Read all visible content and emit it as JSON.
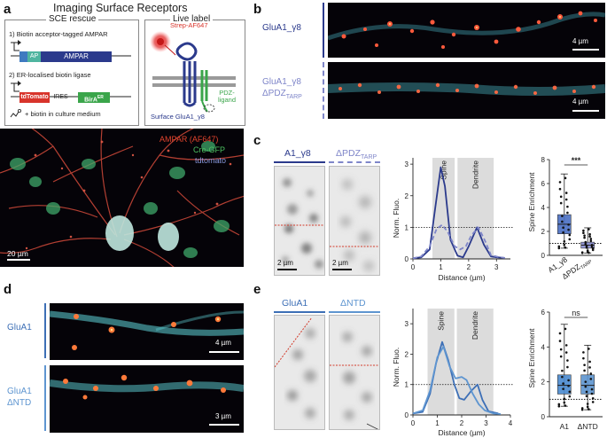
{
  "figure": {
    "panels": {
      "a": {
        "label": "a",
        "title": "Imaging Surface Receptors",
        "sce_box_title": "SCE rescue",
        "step1": "1) Biotin acceptor-tagged AMPAR",
        "ap": "AP",
        "ampar": "AMPAR",
        "step2": "2) ER-localised biotin ligase",
        "tdtomato_seg": "tdTomato",
        "ires_seg": "-IRES-",
        "bira_seg": "BirA",
        "bira_sup": "ER",
        "biotin_note": "+ biotin in culture medium",
        "live_box_title": "Live label",
        "strep": "Strep-AF647",
        "pdz_ligand": "PDZ-\nligand",
        "pdz_line1": "PDZ-",
        "pdz_line2": "ligand",
        "surface": "Surface GluA1_γ8",
        "legend_ampar": "AMPAR (AF647)",
        "legend_cre": "Cre-GFP",
        "legend_td": "tdtomato",
        "scale": "20 µm"
      },
      "b": {
        "label": "b",
        "row1": "GluA1_γ8",
        "row2_line1": "GluA1_γ8",
        "row2_line2_main": "ΔPDZ",
        "row2_line2_sub": "TARP",
        "scale1": "4 µm",
        "scale2": "4 µm"
      },
      "c": {
        "label": "c",
        "col1": "A1_γ8",
        "col2_main": "ΔPDZ",
        "col2_sub": "TARP",
        "scale1": "2 µm",
        "scale2": "2 µm",
        "ylabel": "Norm. Fluo.",
        "xlabel": "Distance (µm)",
        "spine": "Spine",
        "dendrite": "Dendrite",
        "box_ylabel": "Spine Enrichment",
        "sig": "***",
        "cat1": "A1_γ8",
        "cat2_main": "ΔPDZ",
        "cat2_sub": "TARP"
      },
      "d": {
        "label": "d",
        "row1": "GluA1",
        "row2_line1": "GluA1",
        "row2_line2": "ΔNTD",
        "scale1": "4 µm",
        "scale2": "3 µm"
      },
      "e": {
        "label": "e",
        "col1": "GluA1",
        "col2": "ΔNTD",
        "ylabel": "Norm. Fluo.",
        "xlabel": "Distance (µm)",
        "spine": "Spine",
        "dendrite": "Dendrite",
        "box_ylabel": "Spine Enrichment",
        "sig": "ns",
        "cat1": "A1",
        "cat2": "ΔNTD"
      }
    },
    "colors": {
      "navy": "#2b3a8c",
      "lav": "#7f86c9",
      "blue": "#3d6fb6",
      "ltblue": "#5e95d0",
      "red": "#d8342b",
      "green": "#3aa54a"
    }
  },
  "chart_data": [
    {
      "id": "c-line",
      "type": "line",
      "xlabel": "Distance (µm)",
      "ylabel": "Norm. Fluo.",
      "xlim": [
        0,
        3.5
      ],
      "ylim": [
        0,
        3.2
      ],
      "xticks": [
        0,
        1,
        2,
        3
      ],
      "yticks": [
        0,
        1,
        2,
        3
      ],
      "reference_line": 1,
      "regions": [
        {
          "name": "Spine",
          "x": [
            0.7,
            1.5
          ]
        },
        {
          "name": "Dendrite",
          "x": [
            1.6,
            2.9
          ]
        }
      ],
      "series": [
        {
          "values": [
            [
              0,
              0.02
            ],
            [
              0.3,
              0.05
            ],
            [
              0.6,
              0.3
            ],
            [
              0.8,
              1.6
            ],
            [
              1.0,
              2.9
            ],
            [
              1.15,
              2.3
            ],
            [
              1.35,
              0.6
            ],
            [
              1.6,
              0.1
            ],
            [
              1.8,
              0.05
            ],
            [
              2.0,
              0.4
            ],
            [
              2.3,
              1.0
            ],
            [
              2.55,
              0.45
            ],
            [
              2.8,
              0.08
            ],
            [
              3.0,
              0.05
            ],
            [
              3.3,
              0.03
            ]
          ]
        },
        {
          "values": [
            [
              0,
              0.02
            ],
            [
              0.3,
              0.08
            ],
            [
              0.6,
              0.4
            ],
            [
              0.85,
              0.95
            ],
            [
              1.05,
              1.08
            ],
            [
              1.25,
              0.85
            ],
            [
              1.5,
              0.4
            ],
            [
              1.7,
              0.3
            ],
            [
              1.9,
              0.4
            ],
            [
              2.1,
              0.75
            ],
            [
              2.35,
              1.0
            ],
            [
              2.6,
              0.55
            ],
            [
              2.8,
              0.12
            ],
            [
              3.1,
              0.05
            ],
            [
              3.3,
              0.03
            ]
          ]
        }
      ]
    },
    {
      "id": "c-box",
      "type": "box",
      "ylabel": "Spine Enrichment",
      "ylim": [
        0,
        8
      ],
      "yticks": [
        0,
        2,
        4,
        6,
        8
      ],
      "reference_line": 1,
      "significance": "***",
      "categories": [
        "A1_γ8",
        "ΔPDZTARP"
      ],
      "boxes": [
        {
          "min": 0.6,
          "q1": 1.8,
          "median": 2.6,
          "q3": 3.4,
          "max": 6.8
        },
        {
          "min": 0.2,
          "q1": 0.6,
          "median": 0.85,
          "q3": 1.1,
          "max": 2.3
        }
      ]
    },
    {
      "id": "e-line",
      "type": "line",
      "xlabel": "Distance (µm)",
      "ylabel": "Norm. Fluo.",
      "xlim": [
        0,
        4
      ],
      "ylim": [
        0,
        3.5
      ],
      "xticks": [
        0,
        1,
        2,
        3,
        4
      ],
      "yticks": [
        0,
        1,
        2,
        3
      ],
      "reference_line": 1,
      "regions": [
        {
          "name": "Spine",
          "x": [
            0.6,
            1.7
          ]
        },
        {
          "name": "Dendrite",
          "x": [
            1.8,
            3.3
          ]
        }
      ],
      "series": [
        {
          "values": [
            [
              0,
              0.05
            ],
            [
              0.4,
              0.1
            ],
            [
              0.7,
              0.7
            ],
            [
              0.95,
              1.7
            ],
            [
              1.2,
              2.4
            ],
            [
              1.45,
              1.8
            ],
            [
              1.7,
              1.0
            ],
            [
              1.9,
              0.55
            ],
            [
              2.1,
              0.5
            ],
            [
              2.4,
              0.8
            ],
            [
              2.65,
              1.0
            ],
            [
              2.85,
              0.5
            ],
            [
              3.1,
              0.12
            ],
            [
              3.5,
              0.05
            ]
          ]
        },
        {
          "values": [
            [
              0,
              0.05
            ],
            [
              0.4,
              0.15
            ],
            [
              0.7,
              0.8
            ],
            [
              1.0,
              1.9
            ],
            [
              1.25,
              2.25
            ],
            [
              1.5,
              1.6
            ],
            [
              1.75,
              1.2
            ],
            [
              2.0,
              1.25
            ],
            [
              2.2,
              1.15
            ],
            [
              2.45,
              0.7
            ],
            [
              2.7,
              0.35
            ],
            [
              2.95,
              0.15
            ],
            [
              3.3,
              0.05
            ],
            [
              3.6,
              0.03
            ]
          ]
        }
      ]
    },
    {
      "id": "e-box",
      "type": "box",
      "ylabel": "Spine Enrichment",
      "ylim": [
        0,
        6
      ],
      "yticks": [
        0,
        2,
        4,
        6
      ],
      "reference_line": 1,
      "significance": "ns",
      "categories": [
        "A1",
        "ΔNTD"
      ],
      "boxes": [
        {
          "min": 0.6,
          "q1": 1.3,
          "median": 1.8,
          "q3": 2.4,
          "max": 5.3
        },
        {
          "min": 0.4,
          "q1": 1.3,
          "median": 1.8,
          "q3": 2.4,
          "max": 4.1
        }
      ]
    }
  ]
}
